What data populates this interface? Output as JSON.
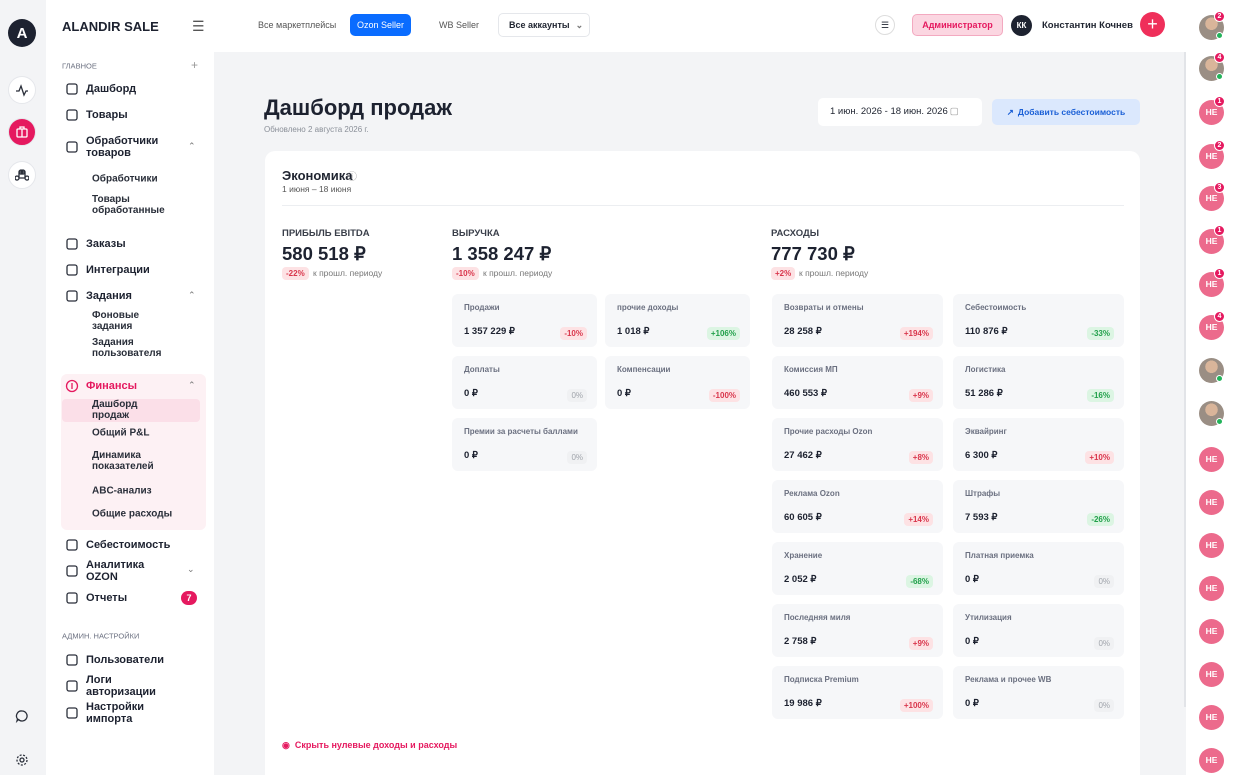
{
  "app": {
    "logo": "A",
    "brand": "ALANDIR SALE"
  },
  "topbar": {
    "tabs": [
      "Все маркетплейсы",
      "Ozon Seller",
      "WB Seller"
    ],
    "accounts": "Все аккаунты",
    "role": "Администратор",
    "user_initials": "КК",
    "user_name": "Константин Кочнев"
  },
  "sidebar": {
    "sections": [
      {
        "title": "ГЛАВНОЕ",
        "items": [
          {
            "label": "Дашборд"
          },
          {
            "label": "Товары"
          },
          {
            "label": "Обработчики товаров",
            "children": [
              "Обработчики",
              "Товары обработанные"
            ]
          },
          {
            "label": "Заказы"
          },
          {
            "label": "Интеграции"
          },
          {
            "label": "Задания",
            "children": [
              "Фоновые задания",
              "Задания пользователя"
            ]
          },
          {
            "label": "Финансы",
            "children": [
              "Дашборд продаж",
              "Общий P&L",
              "Динамика показателей",
              "ABC-анализ",
              "Общие расходы"
            ]
          },
          {
            "label": "Себестоимость"
          },
          {
            "label": "Аналитика OZON"
          },
          {
            "label": "Отчеты",
            "badge": 7
          }
        ]
      },
      {
        "title": "АДМИН. НАСТРОЙКИ",
        "items": [
          {
            "label": "Пользователи"
          },
          {
            "label": "Логи авторизации"
          },
          {
            "label": "Настройки импорта"
          }
        ]
      }
    ]
  },
  "page": {
    "title": "Дашборд продаж",
    "updated": "Обновлено 2 августа 2026 г.",
    "date_range": "1 июн. 2026 - 18 июн. 2026",
    "add_cost_button": "Добавить себестоимость"
  },
  "card": {
    "title": "Экономика",
    "subtitle": "1 июня – 18 июня",
    "compare_label": "к прошл. периоду",
    "metrics": [
      {
        "label": "ПРИБЫЛЬ EBITDA",
        "value": "580 518 ₽",
        "change": "-22%",
        "tone": "negative"
      },
      {
        "label": "ВЫРУЧКА",
        "value": "1 358 247 ₽",
        "change": "-10%",
        "tone": "negative",
        "tiles": [
          {
            "name": "Продажи",
            "value": "1 357 229 ₽",
            "change": "-10%",
            "tone": "negative"
          },
          {
            "name": "прочие доходы",
            "value": "1 018 ₽",
            "change": "+106%",
            "tone": "positive"
          },
          {
            "name": "Доплаты",
            "value": "0 ₽",
            "change": "0%",
            "tone": "neutral"
          },
          {
            "name": "Компенсации",
            "value": "0 ₽",
            "change": "-100%",
            "tone": "negative"
          },
          {
            "name": "Премии за расчеты баллами",
            "value": "0 ₽",
            "change": "0%",
            "tone": "neutral"
          }
        ]
      },
      {
        "label": "РАСХОДЫ",
        "value": "777 730 ₽",
        "change": "+2%",
        "tone": "negative",
        "tiles": [
          {
            "name": "Возвраты и отмены",
            "value": "28 258 ₽",
            "change": "+194%",
            "tone": "negative"
          },
          {
            "name": "Себестоимость",
            "value": "110 876 ₽",
            "change": "-33%",
            "tone": "positive"
          },
          {
            "name": "Комиссия МП",
            "value": "460 553 ₽",
            "change": "+9%",
            "tone": "negative"
          },
          {
            "name": "Логистика",
            "value": "51 286 ₽",
            "change": "-16%",
            "tone": "positive"
          },
          {
            "name": "Прочие расходы Ozon",
            "value": "27 462 ₽",
            "change": "+8%",
            "tone": "negative"
          },
          {
            "name": "Эквайринг",
            "value": "6 300 ₽",
            "change": "+10%",
            "tone": "negative"
          },
          {
            "name": "Реклама Ozon",
            "value": "60 605 ₽",
            "change": "+14%",
            "tone": "negative"
          },
          {
            "name": "Штрафы",
            "value": "7 593 ₽",
            "change": "-26%",
            "tone": "positive"
          },
          {
            "name": "Хранение",
            "value": "2 052 ₽",
            "change": "-68%",
            "tone": "positive"
          },
          {
            "name": "Платная приемка",
            "value": "0 ₽",
            "change": "0%",
            "tone": "neutral"
          },
          {
            "name": "Последняя миля",
            "value": "2 758 ₽",
            "change": "+9%",
            "tone": "negative"
          },
          {
            "name": "Утилизация",
            "value": "0 ₽",
            "change": "0%",
            "tone": "neutral"
          },
          {
            "name": "Подписка Premium",
            "value": "19 986 ₽",
            "change": "+100%",
            "tone": "negative"
          },
          {
            "name": "Реклама и прочее WB",
            "value": "0 ₽",
            "change": "0%",
            "tone": "neutral"
          }
        ]
      }
    ],
    "hide_zero_link": "Скрыть нулевые доходы и расходы"
  },
  "right_rail": {
    "avatars": [
      {
        "photo": true,
        "badge": 2
      },
      {
        "photo": true,
        "badge": 4
      },
      {
        "label": "НЕ",
        "badge": 1
      },
      {
        "label": "НЕ",
        "badge": 2
      },
      {
        "label": "НЕ",
        "badge": 3
      },
      {
        "label": "НЕ",
        "badge": 1
      },
      {
        "label": "НЕ",
        "badge": 1
      },
      {
        "label": "НЕ",
        "badge": 4
      },
      {
        "photo": true
      },
      {
        "photo": true
      },
      {
        "label": "НЕ"
      },
      {
        "label": "НЕ"
      },
      {
        "label": "НЕ"
      },
      {
        "label": "НЕ"
      },
      {
        "label": "НЕ"
      },
      {
        "label": "НЕ"
      },
      {
        "label": "НЕ"
      },
      {
        "label": "НЕ"
      }
    ]
  }
}
